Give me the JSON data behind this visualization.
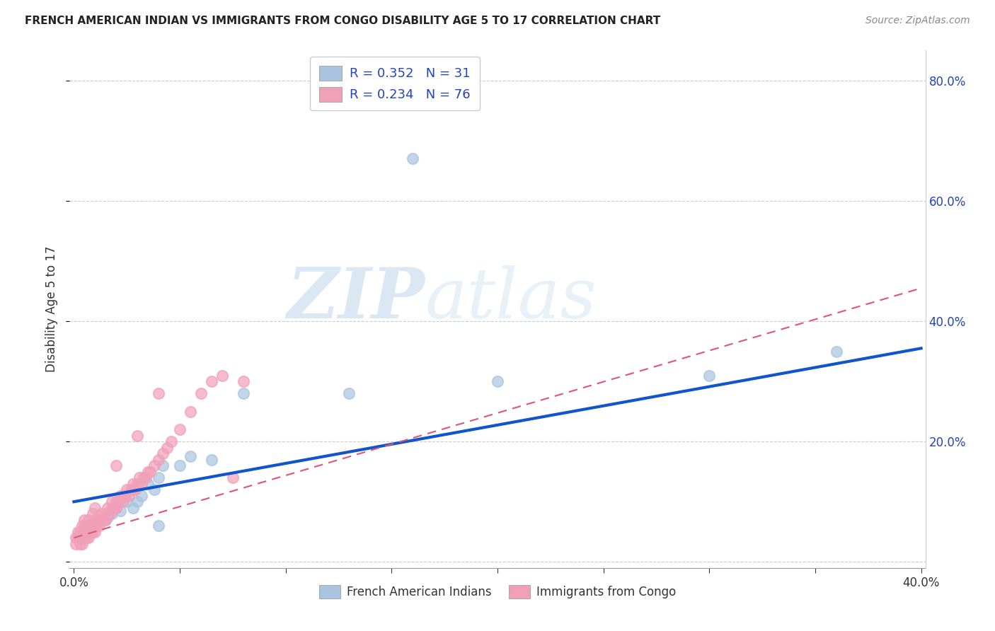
{
  "title": "FRENCH AMERICAN INDIAN VS IMMIGRANTS FROM CONGO DISABILITY AGE 5 TO 17 CORRELATION CHART",
  "source": "Source: ZipAtlas.com",
  "ylabel": "Disability Age 5 to 17",
  "xlabel": "",
  "xlim": [
    -0.002,
    0.402
  ],
  "ylim": [
    -0.01,
    0.85
  ],
  "blue_R": 0.352,
  "blue_N": 31,
  "pink_R": 0.234,
  "pink_N": 76,
  "blue_color": "#a8c4e0",
  "pink_color": "#f0a0b8",
  "blue_line_color": "#1155cc",
  "pink_line_color": "#dd5577",
  "legend_text_color": "#2244bb",
  "blue_scatter_x": [
    0.003,
    0.005,
    0.006,
    0.008,
    0.009,
    0.01,
    0.012,
    0.014,
    0.015,
    0.016,
    0.018,
    0.02,
    0.022,
    0.025,
    0.028,
    0.03,
    0.032,
    0.035,
    0.038,
    0.04,
    0.042,
    0.05,
    0.055,
    0.065,
    0.08,
    0.16,
    0.2,
    0.3,
    0.36,
    0.04,
    0.13
  ],
  "blue_scatter_y": [
    0.04,
    0.05,
    0.05,
    0.06,
    0.06,
    0.06,
    0.07,
    0.07,
    0.07,
    0.075,
    0.08,
    0.09,
    0.085,
    0.1,
    0.09,
    0.1,
    0.11,
    0.13,
    0.12,
    0.14,
    0.16,
    0.16,
    0.175,
    0.17,
    0.28,
    0.67,
    0.3,
    0.31,
    0.35,
    0.06,
    0.28
  ],
  "pink_scatter_x": [
    0.001,
    0.002,
    0.003,
    0.003,
    0.004,
    0.004,
    0.005,
    0.005,
    0.005,
    0.006,
    0.006,
    0.007,
    0.007,
    0.008,
    0.008,
    0.009,
    0.009,
    0.01,
    0.01,
    0.01,
    0.011,
    0.012,
    0.012,
    0.013,
    0.013,
    0.014,
    0.015,
    0.015,
    0.016,
    0.016,
    0.017,
    0.018,
    0.018,
    0.019,
    0.02,
    0.02,
    0.021,
    0.022,
    0.023,
    0.024,
    0.025,
    0.026,
    0.027,
    0.028,
    0.028,
    0.029,
    0.03,
    0.031,
    0.032,
    0.033,
    0.034,
    0.035,
    0.036,
    0.038,
    0.04,
    0.042,
    0.044,
    0.046,
    0.05,
    0.055,
    0.06,
    0.065,
    0.07,
    0.075,
    0.08,
    0.001,
    0.002,
    0.003,
    0.004,
    0.005,
    0.006,
    0.008,
    0.01,
    0.02,
    0.03,
    0.04
  ],
  "pink_scatter_y": [
    0.03,
    0.04,
    0.04,
    0.05,
    0.03,
    0.06,
    0.04,
    0.05,
    0.07,
    0.05,
    0.06,
    0.04,
    0.07,
    0.05,
    0.06,
    0.05,
    0.08,
    0.05,
    0.06,
    0.09,
    0.06,
    0.06,
    0.07,
    0.07,
    0.08,
    0.07,
    0.07,
    0.08,
    0.08,
    0.09,
    0.08,
    0.09,
    0.1,
    0.09,
    0.09,
    0.1,
    0.1,
    0.11,
    0.1,
    0.11,
    0.12,
    0.11,
    0.12,
    0.12,
    0.13,
    0.12,
    0.13,
    0.14,
    0.13,
    0.14,
    0.14,
    0.15,
    0.15,
    0.16,
    0.17,
    0.18,
    0.19,
    0.2,
    0.22,
    0.25,
    0.28,
    0.3,
    0.31,
    0.14,
    0.3,
    0.04,
    0.05,
    0.03,
    0.05,
    0.06,
    0.04,
    0.06,
    0.07,
    0.16,
    0.21,
    0.28
  ],
  "blue_line_x0": 0.0,
  "blue_line_x1": 0.4,
  "blue_line_y0": 0.1,
  "blue_line_y1": 0.355,
  "pink_line_x0": 0.0,
  "pink_line_x1": 0.4,
  "pink_line_y0": 0.04,
  "pink_line_y1": 0.455,
  "watermark_zip": "ZIP",
  "watermark_atlas": "atlas",
  "background_color": "#ffffff",
  "grid_color": "#cccccc"
}
